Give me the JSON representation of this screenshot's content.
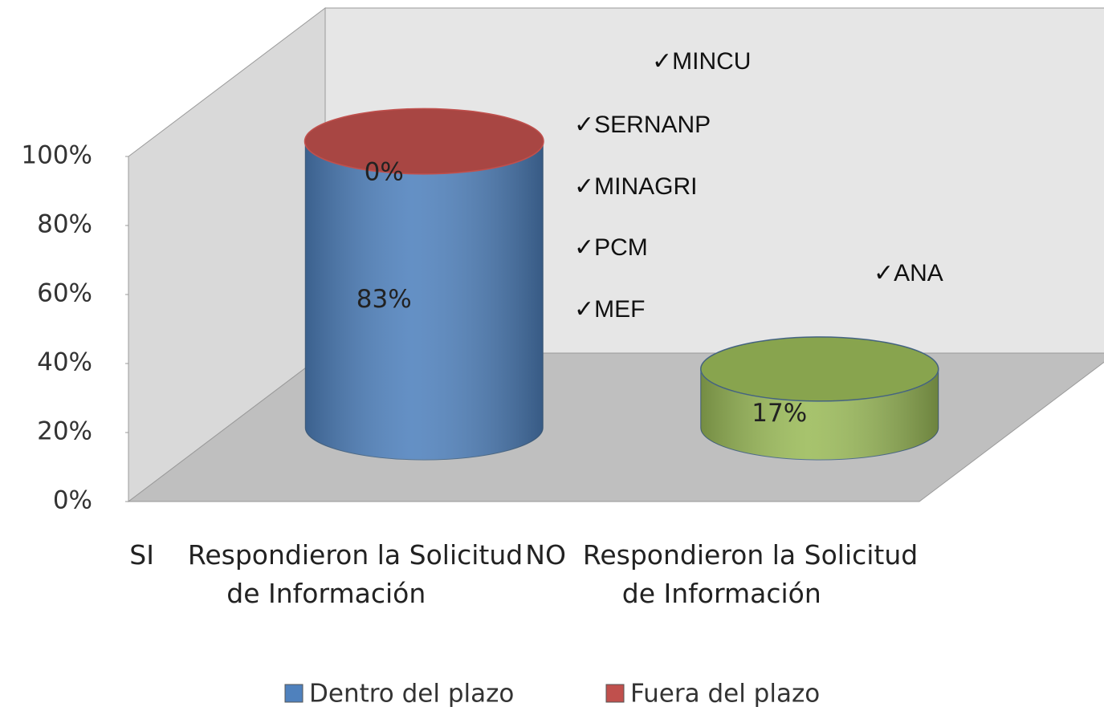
{
  "chart_data": {
    "type": "cylinder",
    "categories": [
      "SI    Respondieron la Solicitud de Información",
      "NO  Respondieron la Solicitud de Información"
    ],
    "series": [
      {
        "name": "Dentro del plazo",
        "color": "#4f81bd",
        "colors": [
          "#4f81bd",
          "#9bbb59"
        ],
        "values": [
          83,
          17
        ],
        "value_labels": [
          "83%",
          "17%"
        ]
      },
      {
        "name": "Fuera del plazo",
        "color": "#c0504d",
        "values": [
          0,
          null
        ],
        "value_labels": [
          "0%",
          null
        ]
      }
    ],
    "ylim": [
      0,
      100
    ],
    "yticks": [
      {
        "value": 0,
        "label": "0%"
      },
      {
        "value": 20,
        "label": "20%"
      },
      {
        "value": 40,
        "label": "40%"
      },
      {
        "value": 60,
        "label": "60%"
      },
      {
        "value": 80,
        "label": "80%"
      },
      {
        "value": 100,
        "label": "100%"
      }
    ],
    "annotations": [
      "✓MINCU",
      "✓SERNANP",
      "✓MINAGRI",
      "✓PCM",
      "✓MEF",
      "✓ANA"
    ],
    "legend": "bottom"
  }
}
